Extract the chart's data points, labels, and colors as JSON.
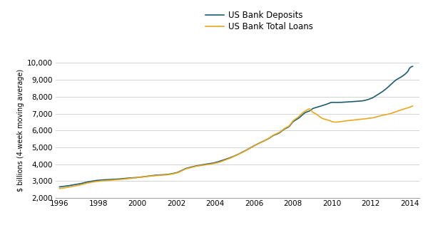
{
  "ylabel": "$ billions (4-week moving average)",
  "deposits_color": "#1b5e72",
  "loans_color": "#e8a820",
  "legend_deposits": "US Bank Deposits",
  "legend_loans": "US Bank Total Loans",
  "background_color": "#ffffff",
  "grid_color": "#cccccc",
  "ylim": [
    2000,
    10000
  ],
  "yticks": [
    2000,
    3000,
    4000,
    5000,
    6000,
    7000,
    8000,
    9000,
    10000
  ],
  "xlim_start": 1995.8,
  "xlim_end": 2014.5,
  "xticks": [
    1996,
    1998,
    2000,
    2002,
    2004,
    2006,
    2008,
    2010,
    2012,
    2014
  ]
}
